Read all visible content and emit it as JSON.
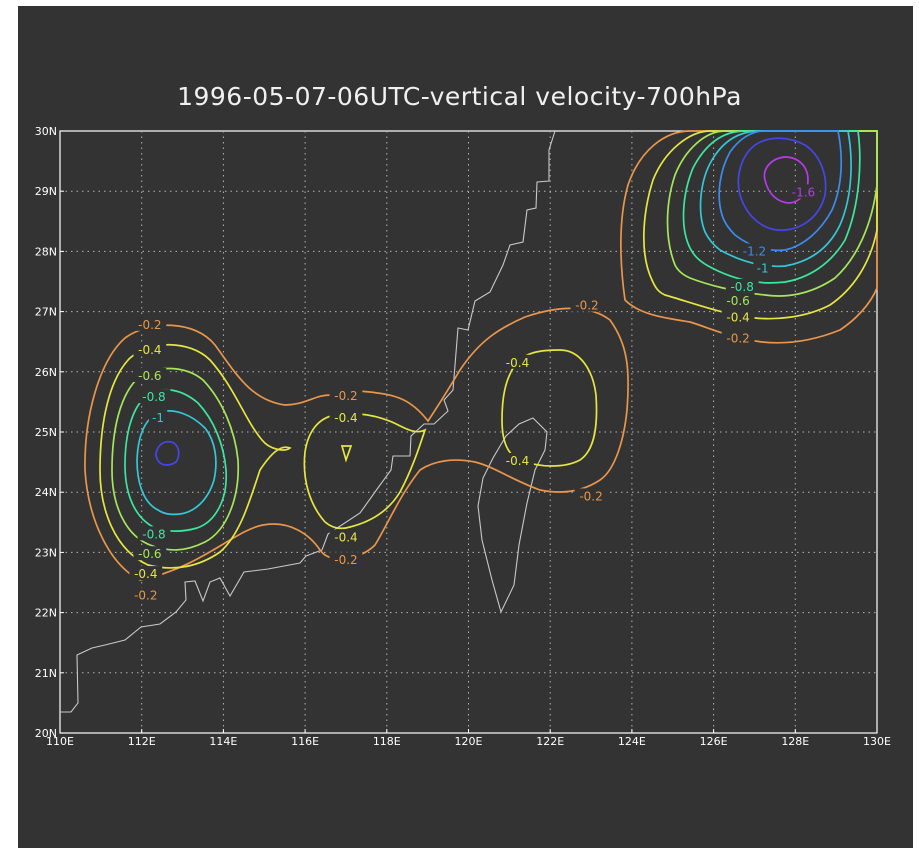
{
  "title": "1996-05-07-06UTC-vertical velocity-700hPa",
  "map": {
    "x_axis_labels": [
      "110E",
      "112E",
      "114E",
      "116E",
      "118E",
      "120E",
      "122E",
      "124E",
      "126E",
      "128E",
      "130E"
    ],
    "y_axis_labels": [
      "20N",
      "21N",
      "22N",
      "23N",
      "24N",
      "25N",
      "26N",
      "27N",
      "28N",
      "29N",
      "30N"
    ],
    "lon_range": [
      110,
      130
    ],
    "lat_range": [
      20,
      30
    ],
    "grid": "dotted",
    "coastline_color": "#c8c8c8",
    "contour_colors": {
      "-0.2": "#e8964a",
      "-0.4": "#e6e640",
      "-0.6": "#a6e65a",
      "-0.8": "#3ce6a0",
      "-1": "#33c8d8",
      "-1.2": "#3c8cf0",
      "-1.4": "#4646e6",
      "-1.6": "#b43ce8"
    },
    "contour_labels": [
      {
        "text": "-0.2",
        "lon": 112.2,
        "lat": 26.78,
        "level": "-0.2"
      },
      {
        "text": "-0.4",
        "lon": 112.2,
        "lat": 26.36,
        "level": "-0.4"
      },
      {
        "text": "-0.6",
        "lon": 112.2,
        "lat": 25.93,
        "level": "-0.6"
      },
      {
        "text": "-0.8",
        "lon": 112.3,
        "lat": 25.58,
        "level": "-0.8"
      },
      {
        "text": "-1",
        "lon": 112.4,
        "lat": 25.23,
        "level": "-1"
      },
      {
        "text": "-0.8",
        "lon": 112.3,
        "lat": 23.3,
        "level": "-0.8"
      },
      {
        "text": "-0.6",
        "lon": 112.2,
        "lat": 22.97,
        "level": "-0.6"
      },
      {
        "text": "-0.4",
        "lon": 112.1,
        "lat": 22.64,
        "level": "-0.4"
      },
      {
        "text": "-0.2",
        "lon": 112.1,
        "lat": 22.28,
        "level": "-0.2"
      },
      {
        "text": "-0.2",
        "lon": 117.0,
        "lat": 25.6,
        "level": "-0.2"
      },
      {
        "text": "-0.4",
        "lon": 117.0,
        "lat": 25.23,
        "level": "-0.4"
      },
      {
        "text": "-0.4",
        "lon": 117.0,
        "lat": 23.25,
        "level": "-0.4"
      },
      {
        "text": "-0.2",
        "lon": 117.0,
        "lat": 22.87,
        "level": "-0.2"
      },
      {
        "text": "-0.4",
        "lon": 121.2,
        "lat": 26.15,
        "level": "-0.4"
      },
      {
        "text": "-0.4",
        "lon": 121.2,
        "lat": 24.52,
        "level": "-0.4"
      },
      {
        "text": "-0.2",
        "lon": 122.9,
        "lat": 27.1,
        "level": "-0.2"
      },
      {
        "text": "-0.2",
        "lon": 123.0,
        "lat": 23.93,
        "level": "-0.2"
      },
      {
        "text": "-1.6",
        "lon": 128.2,
        "lat": 28.98,
        "level": "-1.6"
      },
      {
        "text": "-1.2",
        "lon": 127.0,
        "lat": 28.0,
        "level": "-1.2"
      },
      {
        "text": "-1",
        "lon": 127.2,
        "lat": 27.72,
        "level": "-1"
      },
      {
        "text": "-0.8",
        "lon": 126.7,
        "lat": 27.41,
        "level": "-0.8"
      },
      {
        "text": "-0.6",
        "lon": 126.6,
        "lat": 27.18,
        "level": "-0.6"
      },
      {
        "text": "-0.4",
        "lon": 126.6,
        "lat": 26.9,
        "level": "-0.4"
      },
      {
        "text": "-0.2",
        "lon": 126.6,
        "lat": 26.55,
        "level": "-0.2"
      }
    ]
  }
}
